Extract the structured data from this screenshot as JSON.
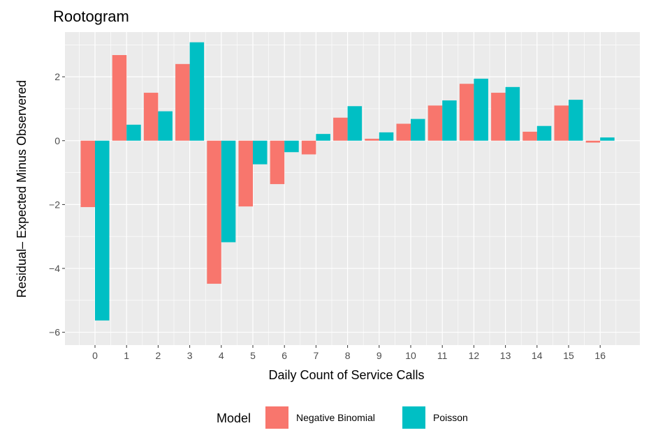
{
  "chart_data": {
    "type": "bar",
    "title": "Rootogram",
    "xlabel": "Daily Count of Service Calls",
    "ylabel": "Residual– Expected Minus Observered",
    "categories": [
      "0",
      "1",
      "2",
      "3",
      "4",
      "5",
      "6",
      "7",
      "8",
      "9",
      "10",
      "11",
      "12",
      "13",
      "14",
      "15",
      "16"
    ],
    "ylim": [
      -6.4,
      3.4
    ],
    "yticks": [
      -6,
      -4,
      -2,
      0,
      2
    ],
    "ytick_labels": [
      "−6",
      "−4",
      "−2",
      "0",
      "2"
    ],
    "grid": true,
    "legend": {
      "title": "Model",
      "position": "bottom"
    },
    "series": [
      {
        "name": "Negative Binomial",
        "color": "#F8766D",
        "values": [
          -2.08,
          2.68,
          1.5,
          2.4,
          -4.48,
          -2.06,
          -1.36,
          -0.43,
          0.72,
          0.06,
          0.53,
          1.1,
          1.78,
          1.5,
          0.28,
          1.1,
          -0.06
        ]
      },
      {
        "name": "Poisson",
        "color": "#00BFC4",
        "values": [
          -5.63,
          0.5,
          0.92,
          3.08,
          -3.18,
          -0.74,
          -0.36,
          0.21,
          1.08,
          0.26,
          0.68,
          1.26,
          1.94,
          1.68,
          0.46,
          1.28,
          0.1
        ]
      }
    ]
  }
}
